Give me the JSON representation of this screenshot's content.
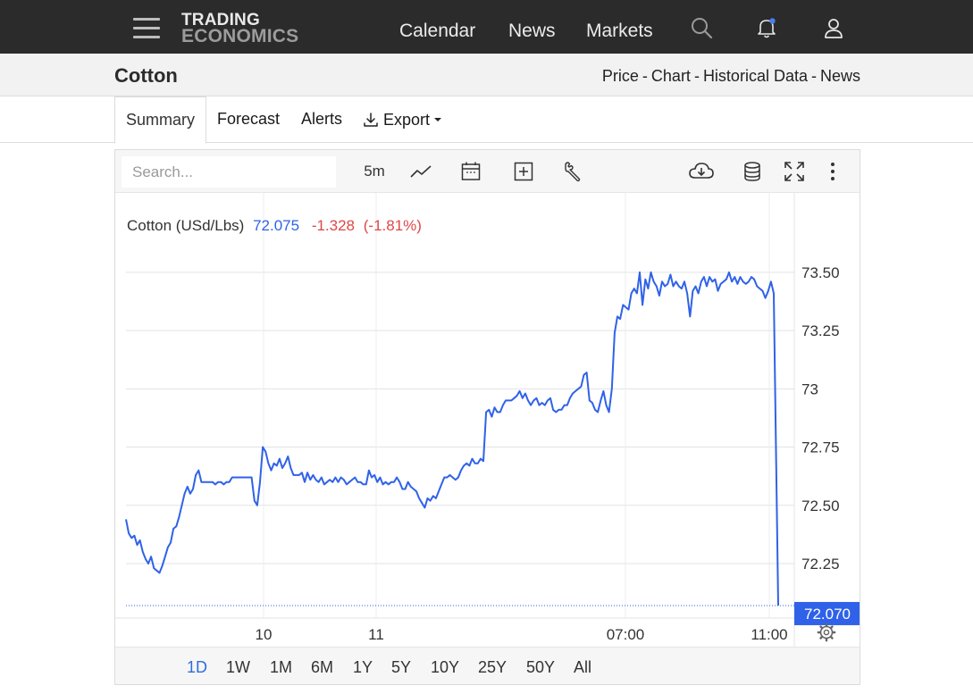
{
  "nav": {
    "logo_line1": "TRADING",
    "logo_line2": "ECONOMICS",
    "links": [
      "Calendar",
      "News",
      "Markets"
    ],
    "notification_dot_color": "#4a7dea"
  },
  "title": {
    "name": "Cotton",
    "links": [
      "Price",
      "Chart",
      "Historical Data",
      "News"
    ],
    "separator": "-"
  },
  "tabs": {
    "summary": "Summary",
    "forecast": "Forecast",
    "alerts": "Alerts",
    "export": "Export"
  },
  "toolbar": {
    "search_placeholder": "Search...",
    "interval": "5m"
  },
  "ranges": {
    "items": [
      "1D",
      "1W",
      "1M",
      "6M",
      "1Y",
      "5Y",
      "10Y",
      "25Y",
      "50Y",
      "All"
    ],
    "active": "1D"
  },
  "colors": {
    "line": "#2f62e8",
    "negative": "#e04747",
    "price_tag_bg": "#2f62e8"
  },
  "chart_data": {
    "type": "line",
    "legend_name": "Cotton (USd/Lbs)",
    "legend_price": "72.075",
    "legend_change": "-1.328",
    "legend_pct": "(-1.81%)",
    "last_price_label": "72.070",
    "y_ticks": [
      "73.50",
      "73.25",
      "73",
      "72.75",
      "72.50",
      "72.25"
    ],
    "y_tick_values": [
      73.5,
      73.25,
      73.0,
      72.75,
      72.5,
      72.25
    ],
    "x_ticks": [
      "10",
      "11",
      "07:00",
      "11:00"
    ],
    "ylim": [
      72.02,
      73.58
    ],
    "grid": true,
    "series": [
      {
        "values": [
          72.44,
          72.38,
          72.36,
          72.37,
          72.33,
          72.35,
          72.3,
          72.27,
          72.25,
          72.28,
          72.23,
          72.22,
          72.21,
          72.24,
          72.28,
          72.32,
          72.34,
          72.4,
          72.41,
          72.45,
          72.5,
          72.55,
          72.58,
          72.55,
          72.57,
          72.63,
          72.65,
          72.6,
          72.6,
          72.6,
          72.6,
          72.6,
          72.59,
          72.6,
          72.6,
          72.59,
          72.6,
          72.6,
          72.62,
          72.62,
          72.62,
          72.62,
          72.62,
          72.62,
          72.62,
          72.62,
          72.52,
          72.5,
          72.6,
          72.75,
          72.73,
          72.68,
          72.65,
          72.68,
          72.67,
          72.7,
          72.66,
          72.68,
          72.71,
          72.66,
          72.63,
          72.63,
          72.63,
          72.64,
          72.6,
          72.64,
          72.61,
          72.63,
          72.61,
          72.6,
          72.62,
          72.59,
          72.6,
          72.61,
          72.6,
          72.62,
          72.6,
          72.62,
          72.61,
          72.59,
          72.6,
          72.61,
          72.62,
          72.6,
          72.6,
          72.59,
          72.59,
          72.65,
          72.62,
          72.63,
          72.6,
          72.62,
          72.59,
          72.6,
          72.59,
          72.6,
          72.6,
          72.62,
          72.6,
          72.57,
          72.57,
          72.6,
          72.58,
          72.57,
          72.56,
          72.53,
          72.51,
          72.49,
          72.53,
          72.52,
          72.54,
          72.53,
          72.56,
          72.59,
          72.62,
          72.62,
          72.63,
          72.62,
          72.61,
          72.62,
          72.65,
          72.67,
          72.68,
          72.67,
          72.7,
          72.68,
          72.68,
          72.7,
          72.69,
          72.9,
          72.91,
          72.88,
          72.92,
          72.9,
          72.9,
          72.93,
          72.95,
          72.95,
          72.95,
          72.96,
          72.97,
          72.99,
          72.96,
          72.98,
          72.95,
          72.93,
          72.95,
          72.96,
          72.93,
          72.94,
          72.93,
          72.95,
          72.96,
          72.91,
          72.9,
          72.91,
          72.91,
          72.93,
          72.93,
          72.96,
          72.98,
          72.99,
          73.0,
          73.01,
          73.06,
          73.07,
          72.95,
          72.94,
          72.91,
          72.9,
          72.95,
          72.99,
          72.93,
          72.9,
          73.0,
          73.24,
          73.31,
          73.3,
          73.36,
          73.35,
          73.34,
          73.41,
          73.43,
          73.41,
          73.5,
          73.36,
          73.47,
          73.43,
          73.5,
          73.46,
          73.44,
          73.4,
          73.46,
          73.44,
          73.45,
          73.49,
          73.44,
          73.46,
          73.44,
          73.43,
          73.46,
          73.41,
          73.31,
          73.42,
          73.44,
          73.41,
          73.46,
          73.48,
          73.44,
          73.48,
          73.46,
          73.47,
          73.42,
          73.45,
          73.46,
          73.47,
          73.5,
          73.46,
          73.48,
          73.45,
          73.48,
          73.46,
          73.45,
          73.46,
          73.48,
          73.47,
          73.44,
          73.43,
          73.42,
          73.39,
          73.42,
          73.46,
          73.41,
          72.07
        ]
      }
    ]
  }
}
